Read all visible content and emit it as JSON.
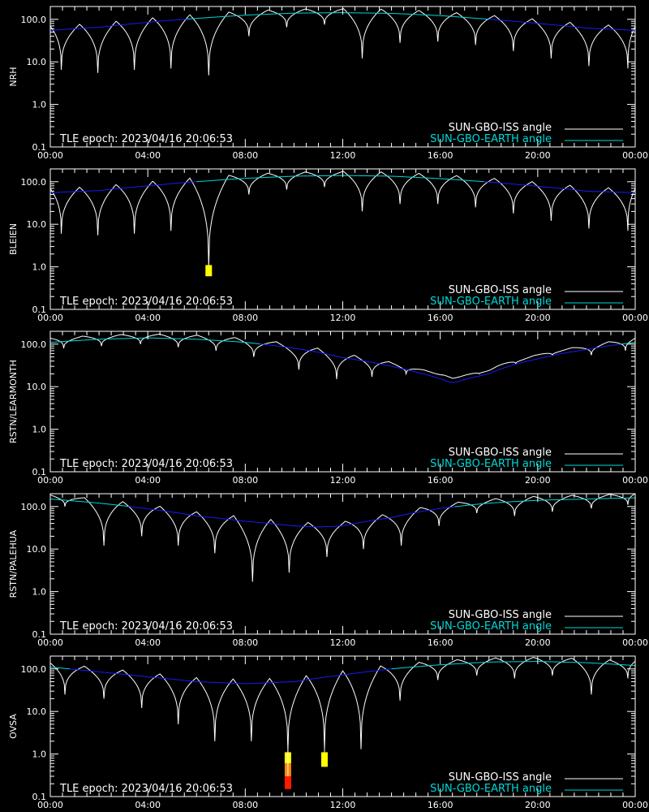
{
  "colors": {
    "background": "#000000",
    "axis": "#ffffff",
    "iss_angle": "#ffffff",
    "earth_angle": "#00d8d8",
    "earth_angle_low": "#1a1aff",
    "marker_yellow": "#ffff00",
    "marker_orange": "#ff8800",
    "marker_red": "#ff1a00"
  },
  "shared": {
    "epoch_text": "TLE epoch: 2023/04/16 20:06:53",
    "legend": [
      {
        "label": "SUN-GBO-ISS angle",
        "color": "#ffffff"
      },
      {
        "label": "SUN-GBO-EARTH angle",
        "color": "#00d8d8"
      }
    ],
    "x_tick_labels": [
      "00:00",
      "04:00",
      "08:00",
      "12:00",
      "16:00",
      "20:00",
      "00:00"
    ],
    "y_tick_labels": [
      "100.0",
      "10.0",
      "1.0",
      "0.1"
    ]
  },
  "chart_data": [
    {
      "type": "line",
      "ylabel": "NRH",
      "yscale": "log",
      "ylim": [
        0.1,
        200
      ],
      "xlim": [
        0,
        24
      ],
      "x_unit": "hours UT",
      "earth_angle": {
        "x": [
          0,
          2,
          4,
          6,
          8,
          10,
          12,
          14,
          16,
          18,
          20,
          22,
          24
        ],
        "y": [
          55,
          65,
          85,
          105,
          125,
          140,
          143,
          138,
          122,
          100,
          80,
          62,
          55
        ]
      },
      "iss_dips": {
        "x": [
          0.45,
          1.95,
          3.45,
          4.95,
          6.5,
          8.15,
          9.7,
          11.25,
          12.8,
          14.35,
          15.9,
          17.45,
          19.0,
          20.55,
          22.1,
          23.7
        ],
        "min": [
          6.5,
          5.5,
          6.5,
          7.0,
          4.8,
          40,
          65,
          75,
          12,
          28,
          30,
          25,
          18,
          12,
          8,
          7
        ]
      },
      "markers": []
    },
    {
      "type": "line",
      "ylabel": "BLEIEN",
      "yscale": "log",
      "ylim": [
        0.1,
        200
      ],
      "xlim": [
        0,
        24
      ],
      "x_unit": "hours UT",
      "earth_angle": {
        "x": [
          0,
          2,
          4,
          6,
          8,
          10,
          12,
          14,
          16,
          18,
          20,
          22,
          24
        ],
        "y": [
          55,
          62,
          80,
          100,
          120,
          135,
          140,
          135,
          118,
          98,
          78,
          60,
          55
        ]
      },
      "iss_dips": {
        "x": [
          0.45,
          1.95,
          3.45,
          4.95,
          6.5,
          8.15,
          9.7,
          11.25,
          12.8,
          14.35,
          15.9,
          17.45,
          19.0,
          20.55,
          22.1,
          23.7
        ],
        "min": [
          6.0,
          5.5,
          6.0,
          7.0,
          1.0,
          50,
          65,
          75,
          20,
          30,
          30,
          25,
          18,
          12,
          8,
          7
        ]
      },
      "markers": [
        {
          "x": 6.5,
          "y_top": 1.1,
          "y_bottom": 0.6,
          "color": "#ffff00"
        }
      ]
    },
    {
      "type": "line",
      "ylabel": "RSTN/LEARMONTH",
      "yscale": "log",
      "ylim": [
        0.1,
        200
      ],
      "xlim": [
        0,
        24
      ],
      "x_unit": "hours UT",
      "earth_angle": {
        "x": [
          0,
          2,
          4,
          6,
          8,
          10,
          12,
          14,
          15,
          16.5,
          18,
          20,
          22,
          24
        ],
        "y": [
          110,
          130,
          140,
          130,
          110,
          80,
          48,
          30,
          22,
          12,
          20,
          45,
          75,
          110
        ]
      },
      "iss_dips": {
        "x": [
          0.55,
          2.1,
          3.7,
          5.25,
          6.8,
          8.35,
          10.2,
          11.75,
          13.2,
          14.6,
          16.1,
          17.6,
          19.1,
          20.6,
          22.2,
          23.6
        ],
        "min": [
          80,
          90,
          100,
          85,
          70,
          50,
          25,
          15,
          17,
          20,
          19,
          20,
          35,
          55,
          55,
          70
        ]
      },
      "markers": []
    },
    {
      "type": "line",
      "ylabel": "RSTN/PALEHUA",
      "yscale": "log",
      "ylim": [
        0.1,
        200
      ],
      "xlim": [
        0,
        24
      ],
      "x_unit": "hours UT",
      "earth_angle": {
        "x": [
          0,
          2,
          4,
          6,
          8,
          10,
          11,
          12,
          14,
          16,
          18,
          20,
          22,
          24
        ],
        "y": [
          150,
          120,
          88,
          60,
          45,
          35,
          33,
          35,
          55,
          90,
          120,
          140,
          150,
          160
        ]
      },
      "iss_dips": {
        "x": [
          0.6,
          2.2,
          3.75,
          5.25,
          6.75,
          8.3,
          9.8,
          11.35,
          12.85,
          14.4,
          15.95,
          17.5,
          19.05,
          20.6,
          22.2,
          23.7
        ],
        "min": [
          100,
          12,
          20,
          12,
          8,
          1.7,
          2.8,
          6.5,
          10,
          12,
          35,
          70,
          60,
          75,
          90,
          110
        ]
      },
      "markers": []
    },
    {
      "type": "line",
      "ylabel": "OVSA",
      "yscale": "log",
      "ylim": [
        0.1,
        200
      ],
      "xlim": [
        0,
        24
      ],
      "x_unit": "hours UT",
      "earth_angle": {
        "x": [
          0,
          2,
          4,
          6,
          8,
          10,
          12,
          14,
          16,
          18,
          20,
          22,
          24
        ],
        "y": [
          110,
          85,
          65,
          50,
          45,
          50,
          72,
          100,
          125,
          145,
          150,
          140,
          120
        ]
      },
      "iss_dips": {
        "x": [
          0.6,
          2.2,
          3.75,
          5.25,
          6.75,
          8.25,
          9.75,
          11.25,
          12.75,
          14.35,
          15.9,
          17.5,
          19.05,
          20.6,
          22.2,
          23.7
        ],
        "min": [
          25,
          20,
          12,
          5,
          2.0,
          2.0,
          1.2,
          1.3,
          1.3,
          18,
          55,
          70,
          60,
          70,
          25,
          60
        ]
      },
      "markers": [
        {
          "x": 9.75,
          "y_top": 1.1,
          "y_bottom": 0.6,
          "color": "#ffff00"
        },
        {
          "x": 9.75,
          "y_top": 0.6,
          "y_bottom": 0.3,
          "color": "#ff8800"
        },
        {
          "x": 9.75,
          "y_top": 0.3,
          "y_bottom": 0.15,
          "color": "#ff1a00"
        },
        {
          "x": 11.25,
          "y_top": 1.1,
          "y_bottom": 0.5,
          "color": "#ffff00"
        }
      ]
    }
  ]
}
